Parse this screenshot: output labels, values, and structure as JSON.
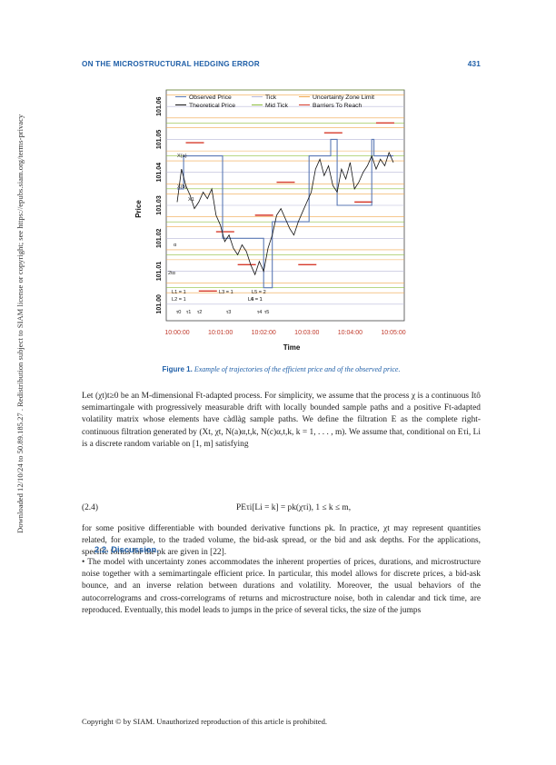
{
  "header": {
    "title": "ON THE MICROSTRUCTURAL HEDGING ERROR",
    "page_number": "431"
  },
  "sidebar_notice": "Downloaded 12/10/24 to 50.89.185.27 . Redistribution subject to SIAM license or copyright; see https://epubs.siam.org/terms-privacy",
  "figure": {
    "label": "Figure 1.",
    "caption": "Example of trajectories of the efficient price and of the observed price."
  },
  "chart_data": {
    "type": "line",
    "title": "",
    "xlabel": "Time",
    "ylabel": "Price",
    "x_ticks": [
      "10:00:00",
      "10:01:00",
      "10:02:00",
      "10:03:00",
      "10:04:00",
      "10:05:00"
    ],
    "y_ticks": [
      "101.00",
      "101.01",
      "101.02",
      "101.03",
      "101.04",
      "101.05",
      "101.06"
    ],
    "ylim": [
      100.995,
      101.065
    ],
    "legend": [
      "Observed Price",
      "Theoretical Price",
      "Tick",
      "Mid Tick",
      "Uncertainty Zone Limit",
      "Barriers To Reach"
    ],
    "legend_placement": "top",
    "colors": {
      "observed": "#5b79b5",
      "theoretical": "#111111",
      "tick": "#b8b8d8",
      "mid_tick": "#8fbf3f",
      "uncertainty_zone": "#f0a64a",
      "barrier": "#d63a2a",
      "x_tick_labels": "#c0392b"
    },
    "series": [
      {
        "name": "Observed Price",
        "x_minutes": [
          0.0,
          0.15,
          0.15,
          1.05,
          1.05,
          2.0,
          2.0,
          2.2,
          2.2,
          3.05,
          3.05,
          3.55,
          3.55,
          3.7,
          3.7,
          4.5,
          4.5,
          4.55,
          4.55,
          5.0
        ],
        "y": [
          101.035,
          101.035,
          101.045,
          101.045,
          101.02,
          101.02,
          101.005,
          101.005,
          101.025,
          101.025,
          101.045,
          101.045,
          101.05,
          101.05,
          101.03,
          101.03,
          101.05,
          101.05,
          101.045,
          101.045
        ]
      },
      {
        "name": "Theoretical Price",
        "x_minutes": [
          0.0,
          0.1,
          0.2,
          0.3,
          0.4,
          0.5,
          0.6,
          0.7,
          0.8,
          0.9,
          1.0,
          1.1,
          1.2,
          1.3,
          1.4,
          1.5,
          1.6,
          1.7,
          1.8,
          1.9,
          2.0,
          2.1,
          2.2,
          2.3,
          2.4,
          2.5,
          2.6,
          2.7,
          2.8,
          2.9,
          3.0,
          3.1,
          3.2,
          3.3,
          3.4,
          3.5,
          3.6,
          3.7,
          3.8,
          3.9,
          4.0,
          4.1,
          4.2,
          4.3,
          4.4,
          4.5,
          4.6,
          4.7,
          4.8,
          4.9,
          5.0
        ],
        "y": [
          101.031,
          101.041,
          101.036,
          101.033,
          101.029,
          101.031,
          101.034,
          101.032,
          101.035,
          101.027,
          101.024,
          101.019,
          101.021,
          101.017,
          101.015,
          101.018,
          101.016,
          101.012,
          101.009,
          101.013,
          101.01,
          101.017,
          101.021,
          101.027,
          101.029,
          101.026,
          101.023,
          101.021,
          101.025,
          101.028,
          101.031,
          101.034,
          101.041,
          101.044,
          101.039,
          101.042,
          101.036,
          101.034,
          101.041,
          101.038,
          101.043,
          101.035,
          101.037,
          101.04,
          101.042,
          101.045,
          101.041,
          101.044,
          101.042,
          101.046,
          101.043
        ]
      }
    ],
    "annotations": [
      "X(a)",
      "X(b)",
      "X1",
      "α",
      "2tα",
      "L1 = 1",
      "L2 = 1",
      "L3 = 1",
      "L4 = 1",
      "L5 = 2",
      "L6 = 1",
      "τ0",
      "τ1",
      "τ2",
      "τ3",
      "τ4",
      "τ5"
    ]
  },
  "body": {
    "paragraph1": "Let (χt)t≥0 be an M-dimensional Ft-adapted process. For simplicity, we assume that the process χ is a continuous Itô semimartingale with progressively measurable drift with locally bounded sample paths and a positive Ft-adapted volatility matrix whose elements have càdlàg sample paths. We define the filtration E as the complete right-continuous filtration generated by (Xt, χt, N(a)α,t,k, N(c)α,t,k, k = 1, . . . , m). We assume that, conditional on Eτi, Li is a discrete random variable on [1, m] satisfying",
    "equation_number": "(2.4)",
    "equation": "PEτi[Li = k] = pk(χτi),        1 ≤ k ≤ m,",
    "paragraph2": "for some positive differentiable with bounded derivative functions pk. In practice, χt may represent quantities related, for example, to the traded volume, the bid-ask spread, or the bid and ask depths. For the applications, specific forms for the pk are given in [22].",
    "section_title": "2.2. Discussion.",
    "paragraph3": "• The model with uncertainty zones accommodates the inherent properties of prices, durations, and microstructure noise together with a semimartingale efficient price. In particular, this model allows for discrete prices, a bid-ask bounce, and an inverse relation between durations and volatility. Moreover, the usual behaviors of the autocorrelograms and cross-correlograms of returns and microstructure noise, both in calendar and tick time, are reproduced. Eventually, this model leads to jumps in the price of several ticks, the size of the jumps"
  },
  "footer": "Copyright © by SIAM. Unauthorized reproduction of this article is prohibited."
}
